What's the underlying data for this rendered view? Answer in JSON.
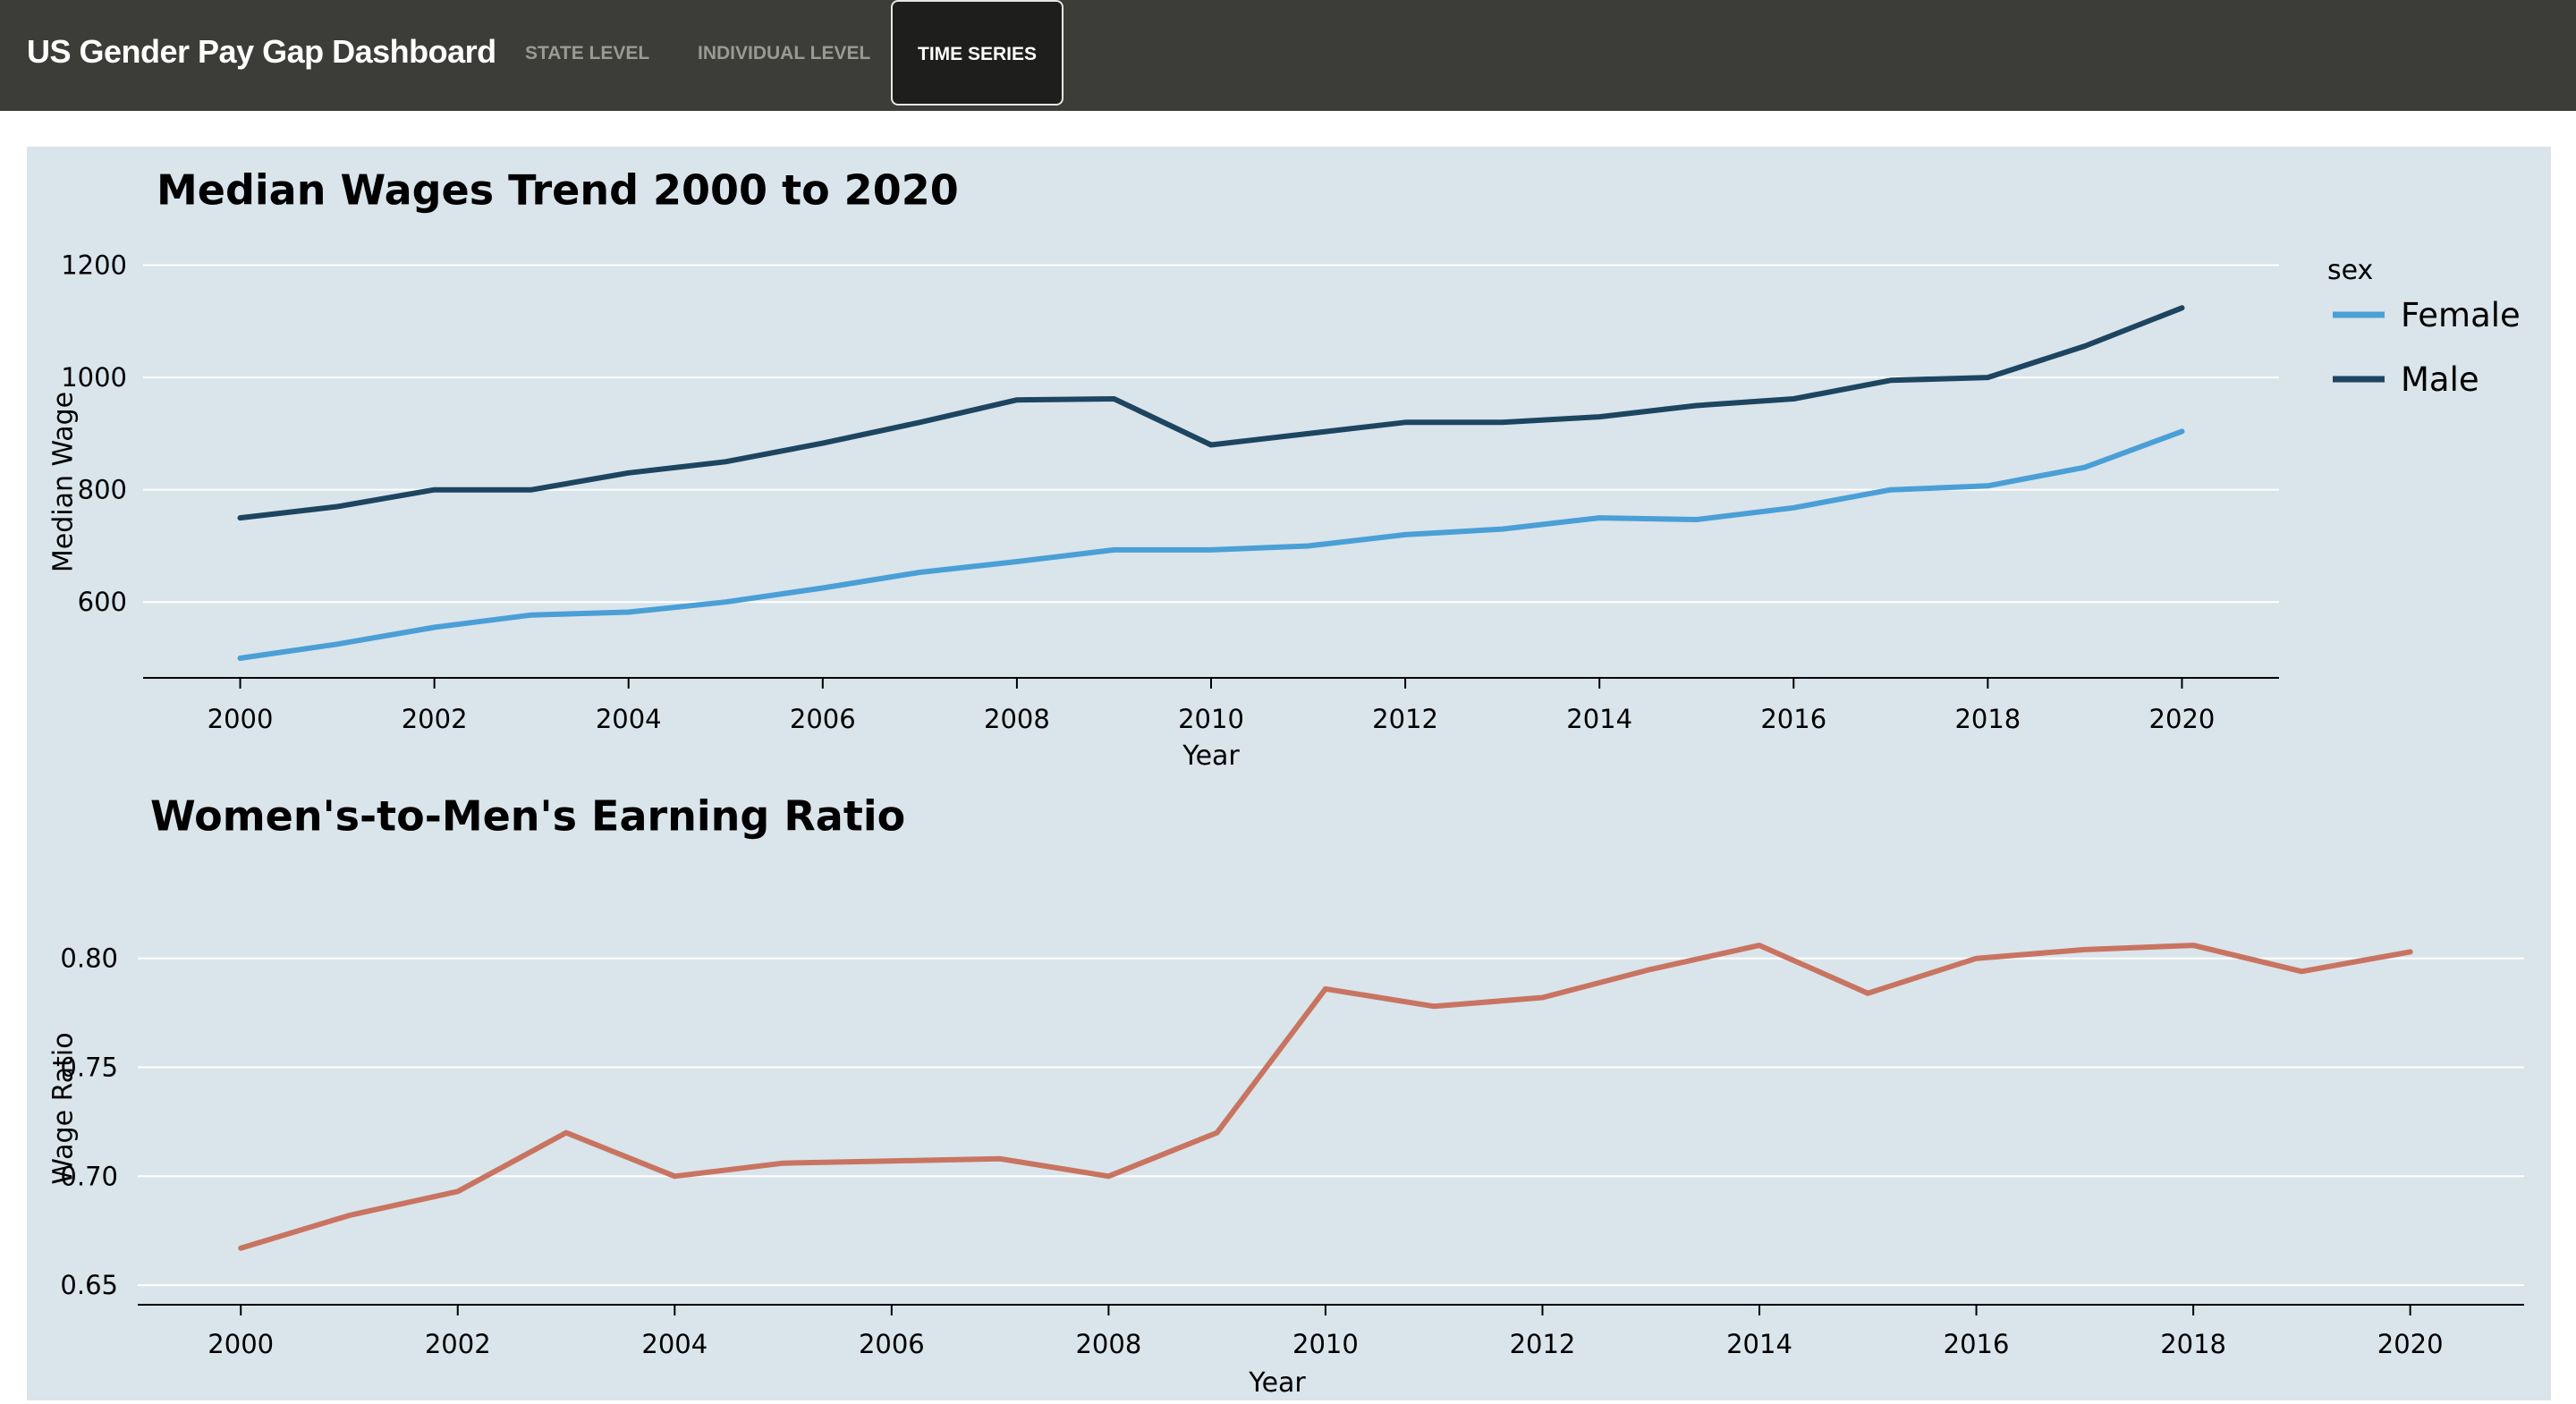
{
  "app": {
    "title": "US Gender Pay Gap Dashboard",
    "nav": [
      {
        "label": "STATE LEVEL",
        "active": false
      },
      {
        "label": "INDIVIDUAL LEVEL",
        "active": false
      },
      {
        "label": "TIME SERIES",
        "active": true
      }
    ]
  },
  "colors": {
    "navbar": "#3c3d38",
    "panel": "#dae4eb",
    "female": "#4a9fd6",
    "male": "#1d4560",
    "ratio": "#c87461"
  },
  "chart_data": [
    {
      "type": "line",
      "title": "Median Wages Trend 2000 to 2020",
      "xlabel": "Year",
      "ylabel": "Median Wage",
      "legend_title": "sex",
      "legend_position": "top-right",
      "grid": true,
      "x": [
        2000,
        2001,
        2002,
        2003,
        2004,
        2005,
        2006,
        2007,
        2008,
        2009,
        2010,
        2011,
        2012,
        2013,
        2014,
        2015,
        2016,
        2017,
        2018,
        2019,
        2020
      ],
      "xticks": [
        "2000",
        "2002",
        "2004",
        "2006",
        "2008",
        "2010",
        "2012",
        "2014",
        "2016",
        "2018",
        "2020"
      ],
      "yticks": [
        "600",
        "800",
        "1000",
        "1200"
      ],
      "xlim": [
        1999,
        2021
      ],
      "ylim": [
        465,
        1220
      ],
      "series": [
        {
          "name": "Female",
          "values": [
            500,
            525,
            555,
            577,
            582,
            600,
            625,
            653,
            672,
            693,
            693,
            700,
            720,
            730,
            750,
            747,
            768,
            800,
            807,
            840,
            904
          ]
        },
        {
          "name": "Male",
          "values": [
            750,
            770,
            800,
            800,
            830,
            850,
            883,
            920,
            960,
            962,
            880,
            900,
            920,
            920,
            930,
            950,
            962,
            995,
            1000,
            1056,
            1124
          ]
        }
      ]
    },
    {
      "type": "line",
      "title": "Women's-to-Men's Earning Ratio",
      "xlabel": "Year",
      "ylabel": "Wage Ratio",
      "grid": true,
      "x": [
        2000,
        2001,
        2002,
        2003,
        2004,
        2005,
        2006,
        2007,
        2008,
        2009,
        2010,
        2011,
        2012,
        2013,
        2014,
        2015,
        2016,
        2017,
        2018,
        2019,
        2020
      ],
      "xticks": [
        "2000",
        "2002",
        "2004",
        "2006",
        "2008",
        "2010",
        "2012",
        "2014",
        "2016",
        "2018",
        "2020"
      ],
      "yticks": [
        "0.65",
        "0.70",
        "0.75",
        "0.80"
      ],
      "xlim": [
        1999.05,
        2021.05
      ],
      "ylim": [
        0.641,
        0.836
      ],
      "series": [
        {
          "name": "",
          "values": [
            0.667,
            0.682,
            0.693,
            0.72,
            0.7,
            0.706,
            0.707,
            0.708,
            0.7,
            0.72,
            0.786,
            0.778,
            0.782,
            0.795,
            0.806,
            0.784,
            0.8,
            0.804,
            0.806,
            0.794,
            0.803
          ]
        }
      ]
    }
  ]
}
